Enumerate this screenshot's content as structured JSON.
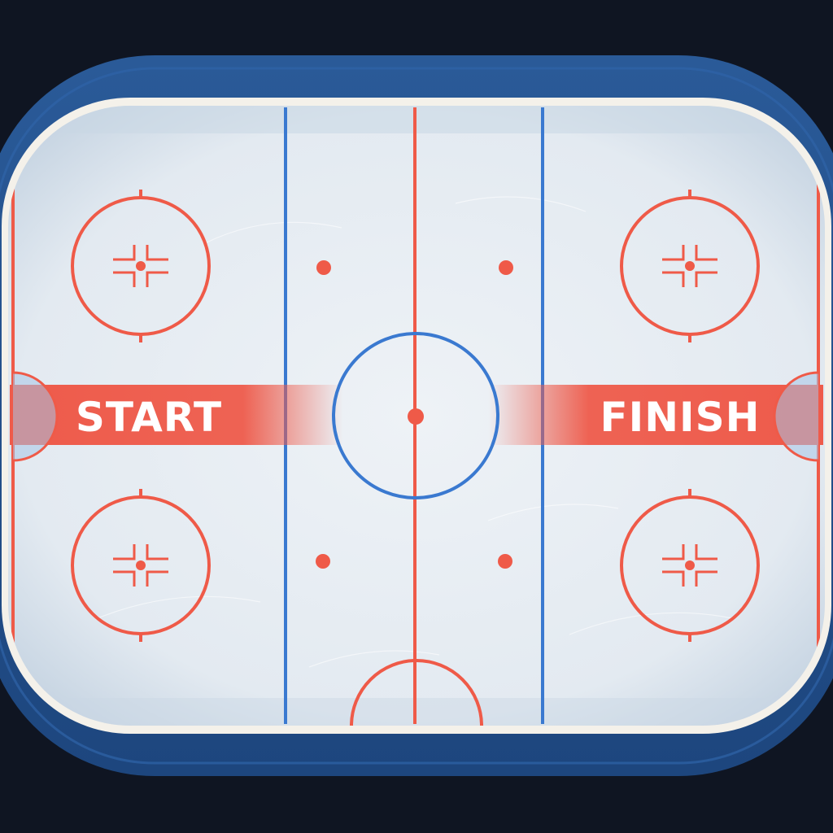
{
  "scene": {
    "start_label": "START",
    "finish_label": "FINISH"
  },
  "colors": {
    "background": "#0f1522",
    "board_outer": "#24528f",
    "board_inner_edge": "#1b3f70",
    "board_trim": "#f4f1ea",
    "ice": "#e6edf3",
    "ice_shadow": "#c9d7e4",
    "red_line": "#ef5a48",
    "blue_line": "#3a79d0",
    "label_band": "#ee5b4b",
    "label_text": "#ffffff"
  },
  "elements": {
    "faceoff_circles": [
      "top-left",
      "bottom-left",
      "top-right",
      "bottom-right"
    ],
    "neutral_dots": [
      "top-left",
      "top-right",
      "bottom-left",
      "bottom-right"
    ],
    "icons": [
      "hockey-rink",
      "faceoff-circle",
      "center-circle"
    ]
  }
}
